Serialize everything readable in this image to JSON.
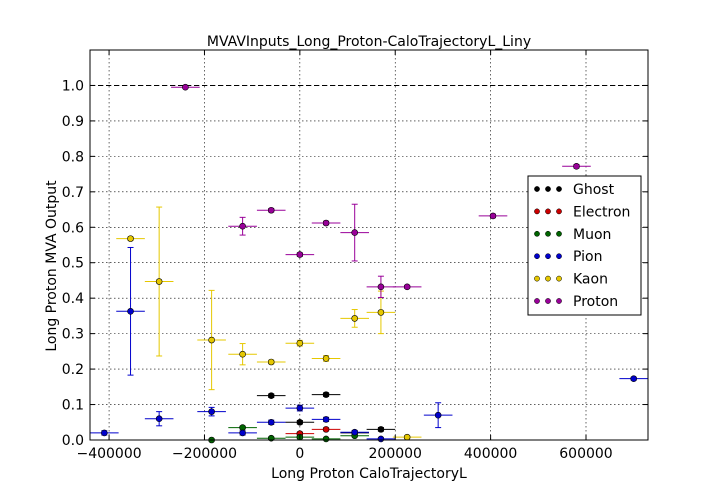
{
  "chart_data": {
    "type": "scatter",
    "title": "MVAVInputs_Long_Proton-CaloTrajectoryL_Liny",
    "xlabel": "Long Proton CaloTrajectoryL",
    "ylabel": "Long Proton MVA Output",
    "xlim": [
      -440000,
      730000
    ],
    "ylim": [
      0,
      1.1
    ],
    "xticks": [
      -400000,
      -200000,
      0,
      200000,
      400000,
      600000
    ],
    "xtick_labels": [
      "−400000",
      "−200000",
      "0",
      "200000",
      "400000",
      "600000"
    ],
    "yticks": [
      0.0,
      0.1,
      0.2,
      0.3,
      0.4,
      0.5,
      0.6,
      0.7,
      0.8,
      0.9,
      1.0
    ],
    "ytick_labels": [
      "0.0",
      "0.1",
      "0.2",
      "0.3",
      "0.4",
      "0.5",
      "0.6",
      "0.7",
      "0.8",
      "0.9",
      "1.0"
    ],
    "reference_line": 1.0,
    "grid": true,
    "legend_position": "right",
    "series": [
      {
        "name": "Ghost",
        "color": "#000000",
        "points": [
          {
            "x": -60000,
            "y": 0.125,
            "xerr": 30000,
            "yerr": 0.005
          },
          {
            "x": 0,
            "y": 0.05,
            "xerr": 30000,
            "yerr": 0.005
          },
          {
            "x": 55000,
            "y": 0.128,
            "xerr": 30000,
            "yerr": 0.005
          },
          {
            "x": 115000,
            "y": 0.02,
            "xerr": 30000,
            "yerr": 0.005
          },
          {
            "x": 170000,
            "y": 0.03,
            "xerr": 30000,
            "yerr": 0.005
          }
        ]
      },
      {
        "name": "Electron",
        "color": "#cc0000",
        "points": [
          {
            "x": 0,
            "y": 0.018,
            "xerr": 30000,
            "yerr": 0.004
          },
          {
            "x": 55000,
            "y": 0.03,
            "xerr": 30000,
            "yerr": 0.004
          }
        ]
      },
      {
        "name": "Muon",
        "color": "#006400",
        "points": [
          {
            "x": -185000,
            "y": 0.0,
            "xerr": 30000,
            "yerr": 0.003
          },
          {
            "x": -120000,
            "y": 0.035,
            "xerr": 30000,
            "yerr": 0.004
          },
          {
            "x": -60000,
            "y": 0.005,
            "xerr": 30000,
            "yerr": 0.003
          },
          {
            "x": 0,
            "y": 0.008,
            "xerr": 30000,
            "yerr": 0.003
          },
          {
            "x": 55000,
            "y": 0.003,
            "xerr": 30000,
            "yerr": 0.003
          },
          {
            "x": 115000,
            "y": 0.012,
            "xerr": 30000,
            "yerr": 0.003
          }
        ]
      },
      {
        "name": "Pion",
        "color": "#0000cc",
        "points": [
          {
            "x": -410000,
            "y": 0.02,
            "xerr": 30000,
            "yerr": 0.006
          },
          {
            "x": -355000,
            "y": 0.363,
            "xerr": 30000,
            "yerr": 0.18
          },
          {
            "x": -295000,
            "y": 0.06,
            "xerr": 30000,
            "yerr": 0.02
          },
          {
            "x": -185000,
            "y": 0.08,
            "xerr": 30000,
            "yerr": 0.012
          },
          {
            "x": -120000,
            "y": 0.02,
            "xerr": 30000,
            "yerr": 0.006
          },
          {
            "x": -60000,
            "y": 0.05,
            "xerr": 30000,
            "yerr": 0.006
          },
          {
            "x": 0,
            "y": 0.09,
            "xerr": 30000,
            "yerr": 0.008
          },
          {
            "x": 55000,
            "y": 0.058,
            "xerr": 30000,
            "yerr": 0.006
          },
          {
            "x": 115000,
            "y": 0.022,
            "xerr": 30000,
            "yerr": 0.005
          },
          {
            "x": 170000,
            "y": 0.003,
            "xerr": 30000,
            "yerr": 0.003
          },
          {
            "x": 290000,
            "y": 0.07,
            "xerr": 30000,
            "yerr": 0.035
          },
          {
            "x": 700000,
            "y": 0.173,
            "xerr": 30000,
            "yerr": 0.004
          }
        ]
      },
      {
        "name": "Kaon",
        "color": "#e6c800",
        "points": [
          {
            "x": -355000,
            "y": 0.568,
            "xerr": 30000,
            "yerr": 0.005
          },
          {
            "x": -295000,
            "y": 0.447,
            "xerr": 30000,
            "yerr": 0.21
          },
          {
            "x": -185000,
            "y": 0.282,
            "xerr": 30000,
            "yerr": 0.14
          },
          {
            "x": -120000,
            "y": 0.242,
            "xerr": 30000,
            "yerr": 0.03
          },
          {
            "x": -60000,
            "y": 0.22,
            "xerr": 30000,
            "yerr": 0.005
          },
          {
            "x": 0,
            "y": 0.273,
            "xerr": 30000,
            "yerr": 0.008
          },
          {
            "x": 55000,
            "y": 0.23,
            "xerr": 30000,
            "yerr": 0.008
          },
          {
            "x": 115000,
            "y": 0.343,
            "xerr": 30000,
            "yerr": 0.025
          },
          {
            "x": 170000,
            "y": 0.36,
            "xerr": 30000,
            "yerr": 0.06
          },
          {
            "x": 225000,
            "y": 0.008,
            "xerr": 30000,
            "yerr": 0.004
          }
        ]
      },
      {
        "name": "Proton",
        "color": "#990099",
        "points": [
          {
            "x": -240000,
            "y": 0.995,
            "xerr": 30000,
            "yerr": 0.003
          },
          {
            "x": -120000,
            "y": 0.603,
            "xerr": 30000,
            "yerr": 0.025
          },
          {
            "x": -60000,
            "y": 0.648,
            "xerr": 30000,
            "yerr": 0.005
          },
          {
            "x": 0,
            "y": 0.523,
            "xerr": 30000,
            "yerr": 0.005
          },
          {
            "x": 55000,
            "y": 0.612,
            "xerr": 30000,
            "yerr": 0.005
          },
          {
            "x": 115000,
            "y": 0.585,
            "xerr": 30000,
            "yerr": 0.08
          },
          {
            "x": 170000,
            "y": 0.432,
            "xerr": 30000,
            "yerr": 0.03
          },
          {
            "x": 225000,
            "y": 0.432,
            "xerr": 30000,
            "yerr": 0.004
          },
          {
            "x": 405000,
            "y": 0.632,
            "xerr": 30000,
            "yerr": 0.005
          },
          {
            "x": 580000,
            "y": 0.772,
            "xerr": 30000,
            "yerr": 0.005
          }
        ]
      }
    ]
  }
}
